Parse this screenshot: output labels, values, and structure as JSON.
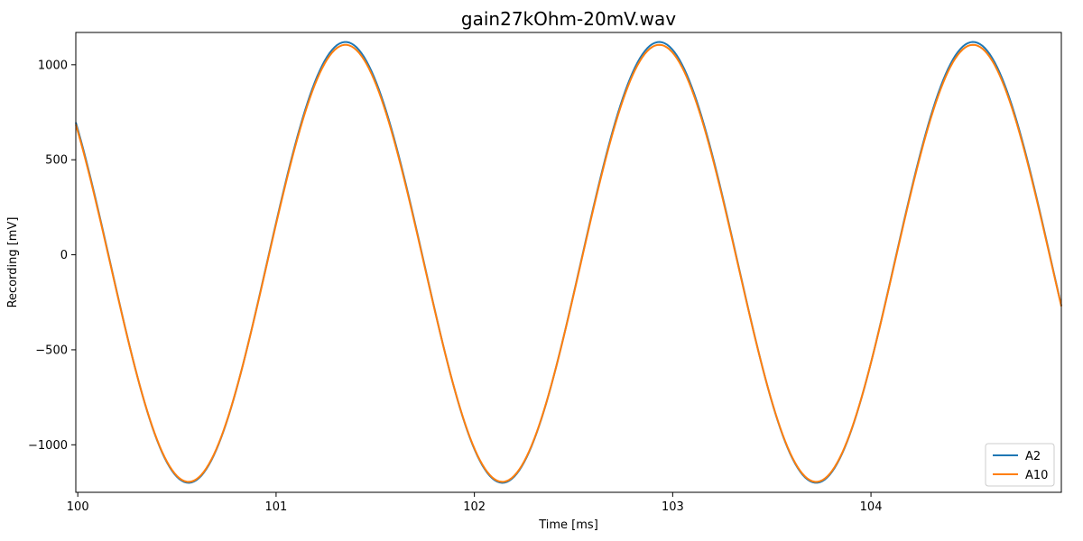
{
  "chart_data": {
    "type": "line",
    "title": "gain27kOhm-20mV.wav",
    "xlabel": "Time [ms]",
    "ylabel": "Recording [mV]",
    "xlim": [
      99.99,
      104.96
    ],
    "ylim": [
      -1250,
      1170
    ],
    "xticks": [
      100,
      101,
      102,
      103,
      104
    ],
    "xtick_labels": [
      "100",
      "101",
      "102",
      "103",
      "104"
    ],
    "yticks": [
      -1000,
      -500,
      0,
      500,
      1000
    ],
    "ytick_labels": [
      "−1000",
      "−500",
      "0",
      "500",
      "1000"
    ],
    "legend_position": "lower-right",
    "grid": false,
    "signal_model": {
      "frequency_khz": 0.632,
      "phase_anchor_ms_at_peak": 101.35
    },
    "series": [
      {
        "name": "A2",
        "color": "#1f77b4",
        "amplitude": 1160,
        "offset": -40
      },
      {
        "name": "A10",
        "color": "#ff7f0e",
        "amplitude": 1150,
        "offset": -45
      }
    ]
  }
}
